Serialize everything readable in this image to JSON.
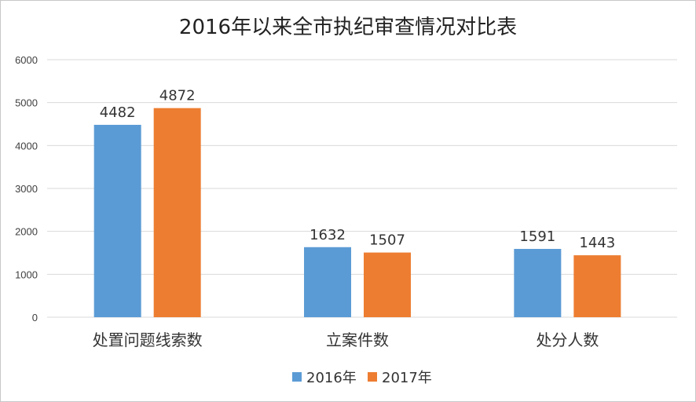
{
  "chart_data": {
    "type": "bar",
    "title": "2016年以来全市执纪审查情况对比表",
    "categories": [
      "处置问题线索数",
      "立案件数",
      "处分人数"
    ],
    "series": [
      {
        "name": "2016年",
        "values": [
          4482,
          1632,
          1591
        ],
        "color": "#5b9bd5"
      },
      {
        "name": "2017年",
        "values": [
          4872,
          1507,
          1443
        ],
        "color": "#ed7d31"
      }
    ],
    "ylim": [
      0,
      6000
    ],
    "yticks": [
      0,
      1000,
      2000,
      3000,
      4000,
      5000,
      6000
    ],
    "grid": true,
    "legend_position": "bottom",
    "xlabel": "",
    "ylabel": ""
  }
}
